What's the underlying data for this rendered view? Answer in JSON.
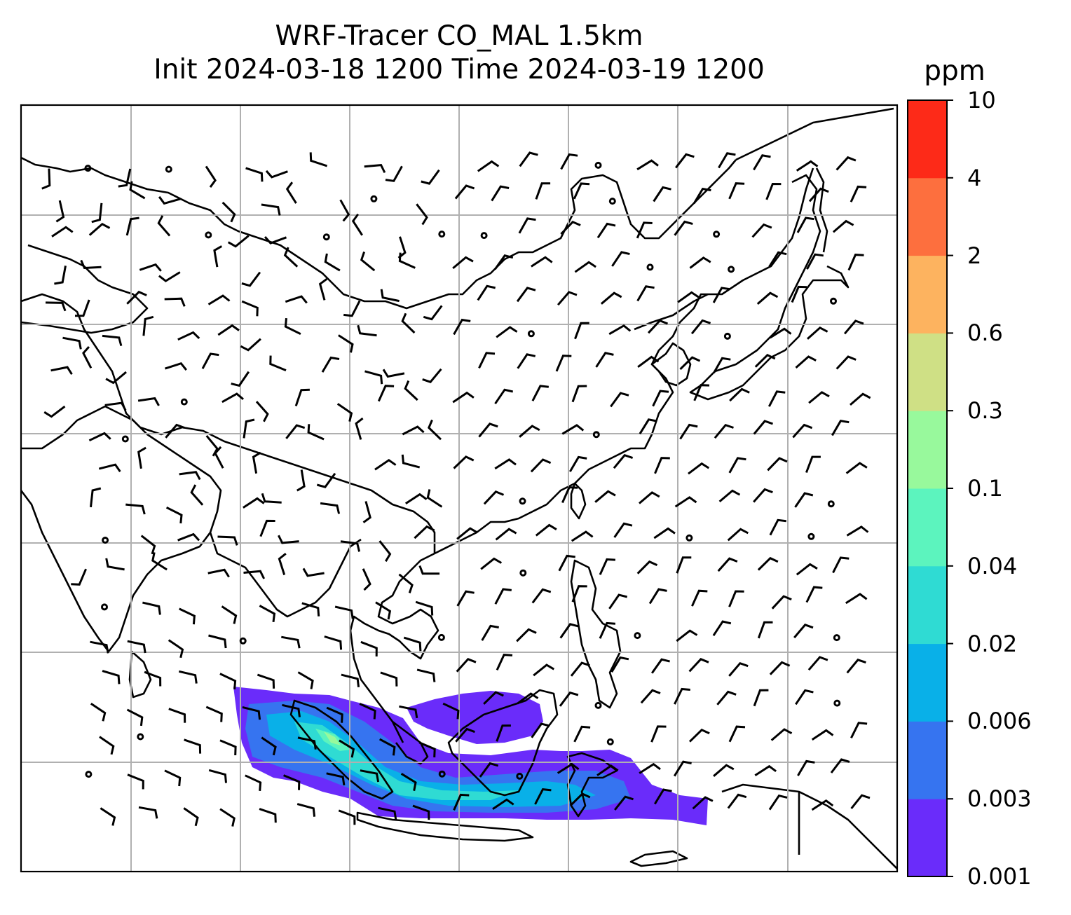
{
  "title": {
    "line1": "WRF-Tracer CO_MAL 1.5km",
    "line2": "Init 2024-03-18 1200 Time 2024-03-19 1200"
  },
  "colorbar": {
    "unit": "ppm",
    "levels": [
      "0.001",
      "0.003",
      "0.006",
      "0.02",
      "0.04",
      "0.1",
      "0.3",
      "0.6",
      "2",
      "4",
      "10"
    ],
    "colors": [
      "#6a2cfa",
      "#3674f0",
      "#09b0e8",
      "#2fdbd3",
      "#5cf4be",
      "#98f99c",
      "#cfe085",
      "#fdb35f",
      "#fd6f3e",
      "#fd2a18"
    ]
  },
  "map": {
    "gridline_color": "#b0b0b0",
    "coastline_color": "#000000",
    "barb_color": "#000000"
  }
}
